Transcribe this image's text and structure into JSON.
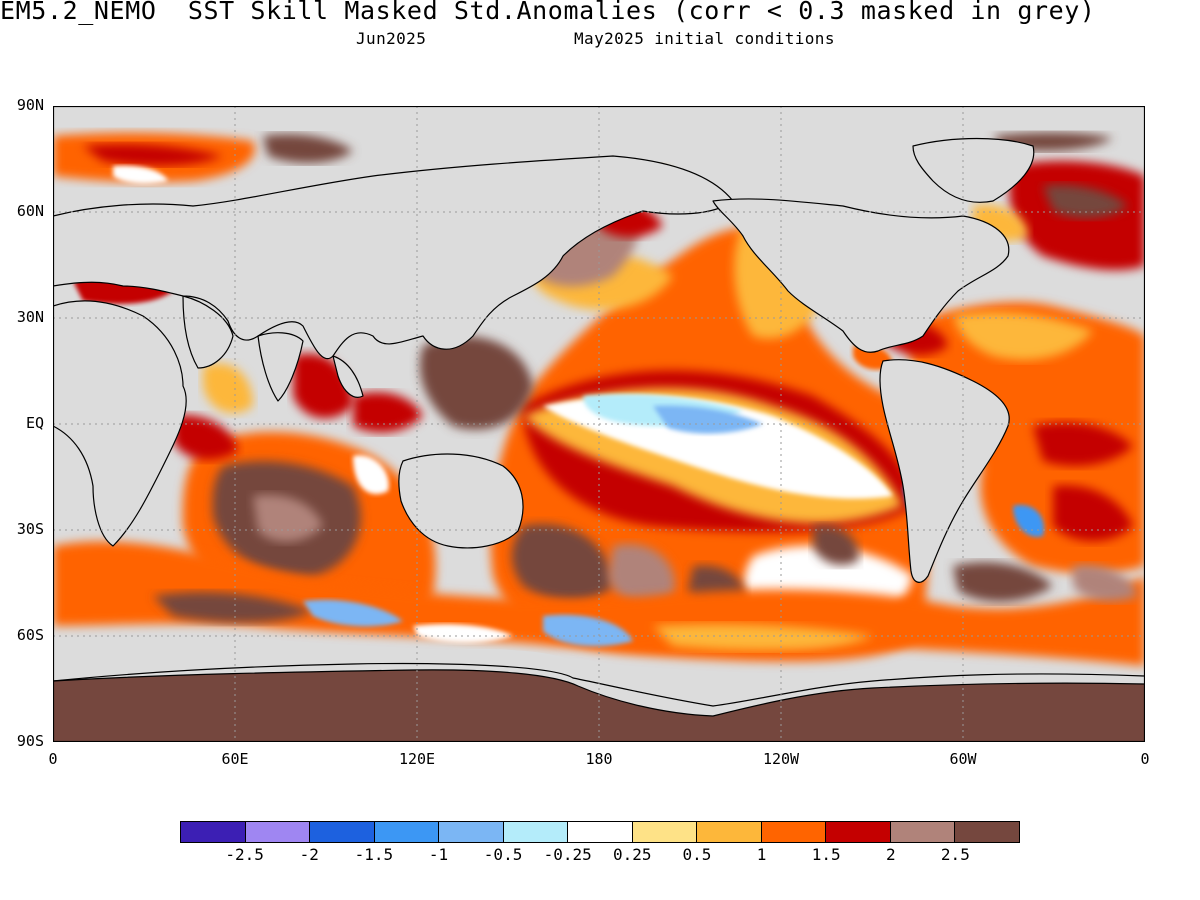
{
  "header": {
    "title": "EM5.2_NEMO  SST Skill Masked Std.Anomalies (corr < 0.3 masked in grey)",
    "valid_month": "Jun2025",
    "init_conditions": "May2025 initial conditions"
  },
  "axes": {
    "lat_labels": [
      "90N",
      "60N",
      "30N",
      "EQ",
      "30S",
      "60S",
      "90S"
    ],
    "lon_labels": [
      "0",
      "60E",
      "120E",
      "180",
      "120W",
      "60W",
      "0"
    ]
  },
  "colorbar": {
    "colors": [
      "#3c1fb4",
      "#9f86f2",
      "#1d61df",
      "#3c97f4",
      "#7bb6f4",
      "#b4ecfa",
      "#ffffff",
      "#fee287",
      "#fdb73a",
      "#ff6400",
      "#c40000",
      "#b0837a",
      "#75473e"
    ],
    "labels": [
      "-2.5",
      "-2",
      "-1.5",
      "-1",
      "-0.5",
      "-0.25",
      "0.25",
      "0.5",
      "1",
      "1.5",
      "2",
      "2.5"
    ]
  },
  "map": {
    "mask_color": "#dcdcdc",
    "land_color": "#dcdcdc",
    "grid_color": "#9a9a9a",
    "coast_color": "#000000"
  }
}
